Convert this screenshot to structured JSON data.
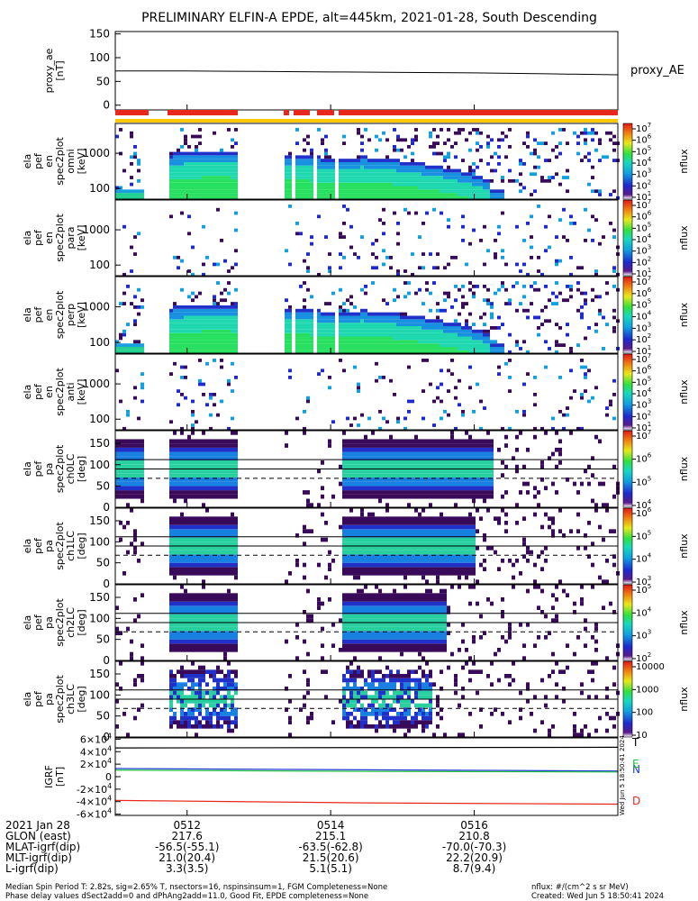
{
  "title": "PRELIMINARY ELFIN-A EPDE, alt=445km, 2021-01-28, South Descending",
  "colors": {
    "red": "#e8281c",
    "yellow": "#ffc800",
    "blue": "#1e3cd6",
    "green": "#20c040",
    "dark": "#3a0a5a"
  },
  "chart_data": [
    {
      "type": "line",
      "panel": "proxy_ae",
      "ylabel": [
        "proxy_ae",
        "[nT]"
      ],
      "yticks": [
        "150",
        "100",
        "50",
        "0"
      ],
      "ylim": [
        -10,
        155
      ],
      "x": [
        "05:11",
        "05:12",
        "05:13",
        "05:14",
        "05:15",
        "05:16",
        "05:17",
        "05:18"
      ],
      "series": [
        {
          "name": "proxy_AE",
          "values": [
            72,
            72,
            71,
            70,
            69,
            68,
            66,
            64
          ]
        }
      ]
    },
    {
      "type": "heatmap",
      "panel": "spec-omni",
      "ylabel": [
        "ela",
        "pef",
        "en",
        "spec2plot",
        "omni",
        "[keV]"
      ],
      "yticks": [
        "1000",
        "100"
      ],
      "yscale": "log",
      "zlabel": "nflux",
      "zticks": [
        "10^7",
        "10^6",
        "10^5",
        "10^4",
        "10^3",
        "10^2",
        "10^1"
      ]
    },
    {
      "type": "heatmap",
      "panel": "spec-para",
      "ylabel": [
        "ela",
        "pef",
        "en",
        "spec2plot",
        "para",
        "[keV]"
      ],
      "yticks": [
        "1000",
        "100"
      ],
      "yscale": "log",
      "zlabel": "nflux",
      "zticks": [
        "10^7",
        "10^6",
        "10^5",
        "10^4",
        "10^3",
        "10^2",
        "10^1"
      ]
    },
    {
      "type": "heatmap",
      "panel": "spec-perp",
      "ylabel": [
        "ela",
        "pef",
        "en",
        "spec2plot",
        "perp",
        "[keV]"
      ],
      "yticks": [
        "1000",
        "100"
      ],
      "yscale": "log",
      "zlabel": "nflux",
      "zticks": [
        "10^7",
        "10^6",
        "10^5",
        "10^4",
        "10^3",
        "10^2",
        "10^1"
      ]
    },
    {
      "type": "heatmap",
      "panel": "spec-anti",
      "ylabel": [
        "ela",
        "pef",
        "en",
        "spec2plot",
        "anti",
        "[keV]"
      ],
      "yticks": [
        "1000",
        "100"
      ],
      "yscale": "log",
      "zlabel": "nflux",
      "zticks": [
        "10^7",
        "10^6",
        "10^5",
        "10^4",
        "10^3",
        "10^2",
        "10^1"
      ]
    },
    {
      "type": "heatmap",
      "panel": "pa-ch0",
      "ylabel": [
        "ela",
        "pef",
        "pa",
        "spec2plot",
        "ch0LC",
        "[deg]"
      ],
      "yticks": [
        "150",
        "100",
        "50",
        "0"
      ],
      "ylim": [
        0,
        180
      ],
      "zlabel": "nflux",
      "zticks": [
        "10^7",
        "10^6",
        "10^5",
        "10^4"
      ]
    },
    {
      "type": "heatmap",
      "panel": "pa-ch1",
      "ylabel": [
        "ela",
        "pef",
        "pa",
        "spec2plot",
        "ch1LC",
        "[deg]"
      ],
      "yticks": [
        "150",
        "100",
        "50",
        "0"
      ],
      "ylim": [
        0,
        180
      ],
      "zlabel": "nflux",
      "zticks": [
        "10^6",
        "10^5",
        "10^4",
        "10^3"
      ]
    },
    {
      "type": "heatmap",
      "panel": "pa-ch2",
      "ylabel": [
        "ela",
        "pef",
        "pa",
        "spec2plot",
        "ch2LC",
        "[deg]"
      ],
      "yticks": [
        "150",
        "100",
        "50",
        "0"
      ],
      "ylim": [
        0,
        180
      ],
      "zlabel": "nflux",
      "zticks": [
        "10^5",
        "10^4",
        "10^3",
        "10^2"
      ]
    },
    {
      "type": "heatmap",
      "panel": "pa-ch3",
      "ylabel": [
        "ela",
        "pef",
        "pa",
        "spec2plot",
        "ch3LC",
        "[deg]"
      ],
      "yticks": [
        "150",
        "100",
        "50",
        "0"
      ],
      "ylim": [
        0,
        180
      ],
      "zlabel": "nflux",
      "zticks": [
        "10000",
        "1000",
        "100",
        "10"
      ]
    },
    {
      "type": "line",
      "panel": "igrf",
      "ylabel": [
        "IGRF",
        "[nT]"
      ],
      "yticks": [
        "6×10^4",
        "4×10^4",
        "2×10^4",
        "0",
        "-2×10^4",
        "-4×10^4",
        "-6×10^4"
      ],
      "ylim": [
        -62000,
        62000
      ],
      "x": [
        "05:11",
        "05:14.5",
        "05:18"
      ],
      "series": [
        {
          "name": "T",
          "values": [
            46000,
            46500,
            47000
          ]
        },
        {
          "name": "N",
          "values": [
            13000,
            11000,
            9000
          ]
        },
        {
          "name": "E",
          "values": [
            10500,
            8500,
            7500
          ]
        },
        {
          "name": "D",
          "values": [
            -38000,
            -42000,
            -44000
          ]
        }
      ]
    }
  ],
  "axis": {
    "time_ticks": [
      "0512",
      "0514",
      "0516"
    ],
    "rows": [
      {
        "label": "2021 Jan 28",
        "values": [
          "0512",
          "0514",
          "0516"
        ]
      },
      {
        "label": "GLON (east)",
        "values": [
          "217.6",
          "215.1",
          "210.8"
        ]
      },
      {
        "label": "MLAT-igrf(dip)",
        "values": [
          "-56.5(-55.1)",
          "-63.5(-62.8)",
          "-70.0(-70.3)"
        ]
      },
      {
        "label": "MLT-igrf(dip)",
        "values": [
          "21.0(20.4)",
          "21.5(20.6)",
          "22.2(20.9)"
        ]
      },
      {
        "label": "L-igrf(dip)",
        "values": [
          "3.3(3.5)",
          "5.1(5.1)",
          "8.7(9.4)"
        ]
      }
    ]
  },
  "footer": {
    "line1": "Median Spin Period T: 2.82s, sig=2.65% T, nsectors=16, nspinsinsum=1, FGM Completeness=None",
    "line2": "Phase delay values dSect2add=0 and dPhAng2add=11.0, Good Fit, EPDE completeness=None",
    "units": "nflux: #/(cm^2 s sr MeV)",
    "created": "Created: Wed Jun  5 18:50:41 2024"
  },
  "side_stamp": "Wed Jun  5 18:50:41 2024"
}
